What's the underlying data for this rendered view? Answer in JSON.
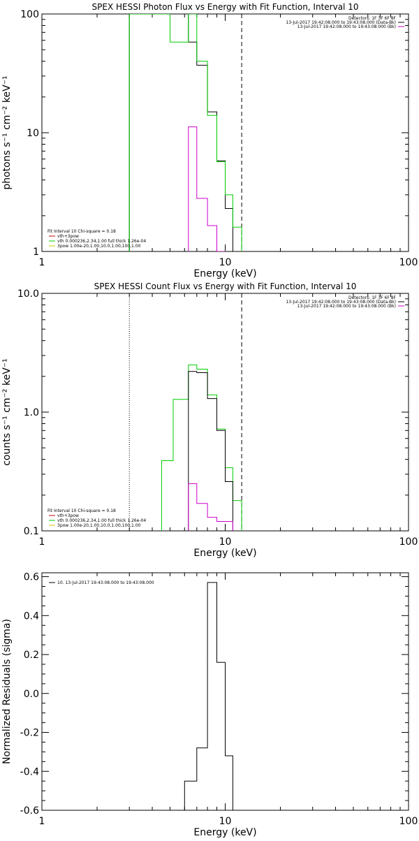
{
  "chart_data": [
    {
      "type": "line",
      "title": "SPEX HESSI Photon Flux vs Energy with Fit Function, Interval 10",
      "xlabel": "Energy (keV)",
      "ylabel": "photons s⁻¹ cm⁻² keV⁻¹",
      "xscale": "log",
      "yscale": "log",
      "xlim": [
        1,
        100
      ],
      "ylim": [
        1,
        100
      ],
      "xticks": [
        {
          "v": 1,
          "label": "1"
        },
        {
          "v": 10,
          "label": "10"
        },
        {
          "v": 100,
          "label": "100"
        }
      ],
      "yticks": [
        {
          "v": 1,
          "label": "1"
        },
        {
          "v": 10,
          "label": "10"
        },
        {
          "v": 100,
          "label": "100"
        }
      ],
      "vlines": [
        {
          "x": 3.0,
          "style": "dotted",
          "color": "#00cc00"
        },
        {
          "x": 12.3,
          "style": "dashed",
          "color": "#000000"
        }
      ],
      "legend_right": [
        {
          "text": "Detectors: 1F 3F 6F 8F",
          "color": "",
          "line": false
        },
        {
          "text": "13-Jul-2017 19:42:08.000 to 19:43:08.000 (Data-Bk)",
          "color": "#000000",
          "line": true
        },
        {
          "text": "13-Jul-2017 19:42:08.000 to 19:43:08.000 (Bk)",
          "color": "#cc00cc",
          "line": true
        }
      ],
      "legend_left": [
        {
          "text": "Fit Interval 10   Chi-square = 0.18",
          "color": "",
          "line": false
        },
        {
          "text": "vth+3pow",
          "color": "#cc0000",
          "line": true
        },
        {
          "text": "vth 0.000236,2.34,1.00  full thick 1.26e-04",
          "color": "#00cc00",
          "line": true
        },
        {
          "text": "3pow 1.00e-20,1.00,10.0,1.00,100,1.00",
          "color": "#cccc00",
          "line": true
        }
      ],
      "series": [
        {
          "name": "Data-Bk",
          "color": "#000000",
          "edges": [
            3.0,
            5.0,
            6.3,
            7.0,
            8.0,
            9.0,
            10.0,
            11.0,
            12.3
          ],
          "values": [
            100,
            100,
            58,
            37,
            15,
            5.8,
            2.3,
            1.0
          ]
        },
        {
          "name": "vth+3pow",
          "color": "#00cc00",
          "edges": [
            3.0,
            5.0,
            6.3,
            7.0,
            8.0,
            9.0,
            10.0,
            11.0,
            12.3
          ],
          "values": [
            100,
            58,
            100,
            40,
            14,
            5.7,
            3.0,
            1.6
          ]
        },
        {
          "name": "Bk",
          "color": "#cc00cc",
          "edges": [
            6.3,
            7.0,
            8.0,
            9.0,
            10.0,
            11.0
          ],
          "values": [
            11.2,
            2.8,
            1.65,
            1.0,
            0.96
          ]
        }
      ]
    },
    {
      "type": "line",
      "title": "SPEX HESSI Count Flux vs Energy with Fit Function, Interval 10",
      "xlabel": "Energy (keV)",
      "ylabel": "counts s⁻¹ cm⁻² keV⁻¹",
      "xscale": "log",
      "yscale": "log",
      "xlim": [
        1,
        100
      ],
      "ylim": [
        0.1,
        10
      ],
      "xticks": [
        {
          "v": 1,
          "label": "1"
        },
        {
          "v": 10,
          "label": "10"
        },
        {
          "v": 100,
          "label": "100"
        }
      ],
      "yticks": [
        {
          "v": 0.1,
          "label": "0.1"
        },
        {
          "v": 1,
          "label": "1.0"
        },
        {
          "v": 10,
          "label": "10.0"
        }
      ],
      "vlines": [
        {
          "x": 3.0,
          "style": "dotted",
          "color": "#000000"
        },
        {
          "x": 12.3,
          "style": "dashed",
          "color": "#000000"
        }
      ],
      "legend_right": [
        {
          "text": "Detectors: 1F 3F 6F 8F",
          "color": "",
          "line": false
        },
        {
          "text": "13-Jul-2017 19:42:08.000 to 19:43:08.000 (Data-Bk)",
          "color": "#000000",
          "line": true
        },
        {
          "text": "13-Jul-2017 19:42:08.000 to 19:43:08.000 (Bk)",
          "color": "#cc00cc",
          "line": true
        }
      ],
      "legend_left": [
        {
          "text": "Fit Interval 10   Chi-square = 0.18",
          "color": "",
          "line": false
        },
        {
          "text": "vth+3pow",
          "color": "#cc0000",
          "line": true
        },
        {
          "text": "vth 0.000236,2.34,1.00  full thick 1.26e-04",
          "color": "#00cc00",
          "line": true
        },
        {
          "text": "3pow 1.00e-20,1.00,10.0,1.00,100,1.00",
          "color": "#cccc00",
          "line": true
        }
      ],
      "series": [
        {
          "name": "vth+3pow",
          "color": "#00cc00",
          "edges": [
            4.0,
            4.5,
            5.2,
            6.3,
            7.0,
            8.0,
            9.0,
            10.0,
            11.0,
            12.3
          ],
          "values": [
            0.08,
            0.39,
            1.28,
            2.5,
            2.3,
            1.4,
            0.72,
            0.34,
            0.18
          ]
        },
        {
          "name": "Data-Bk",
          "color": "#000000",
          "edges": [
            5.2,
            6.3,
            7.0,
            8.0,
            9.0,
            10.0,
            11.0
          ],
          "values": [
            0.08,
            2.2,
            2.15,
            1.3,
            0.7,
            0.26
          ]
        },
        {
          "name": "Bk",
          "color": "#cc00cc",
          "edges": [
            6.3,
            7.0,
            8.0,
            9.0,
            10.0,
            11.0
          ],
          "values": [
            0.25,
            0.17,
            0.13,
            0.12,
            0.12
          ]
        }
      ]
    },
    {
      "type": "line",
      "title": "",
      "xlabel": "Energy (keV)",
      "ylabel": "Normalized Residuals (sigma)",
      "xscale": "log",
      "yscale": "linear",
      "xlim": [
        1,
        100
      ],
      "ylim": [
        -0.6,
        0.62
      ],
      "xticks": [
        {
          "v": 1,
          "label": "1"
        },
        {
          "v": 10,
          "label": "10"
        },
        {
          "v": 100,
          "label": "100"
        }
      ],
      "yticks": [
        {
          "v": 0.6,
          "label": "0.6"
        },
        {
          "v": 0.4,
          "label": "0.4"
        },
        {
          "v": 0.2,
          "label": "0.2"
        },
        {
          "v": 0,
          "label": "0.0"
        },
        {
          "v": -0.2,
          "label": "-0.2"
        },
        {
          "v": -0.4,
          "label": "-0.4"
        },
        {
          "v": -0.6,
          "label": "-0.6"
        }
      ],
      "vlines": [],
      "legend_right": [],
      "legend_left": [
        {
          "text": "10. 13-Jul-2017 19:43:08.000 to 19:43:08.000",
          "color": "#000000",
          "line": true
        }
      ],
      "series": [
        {
          "name": "10. 13-Jul-2017 19:43:08.000 to 19:43:08.000",
          "color": "#000000",
          "edges": [
            6.0,
            7.0,
            8.0,
            9.0,
            10.0,
            11.0
          ],
          "values": [
            -0.45,
            -0.28,
            0.57,
            0.16,
            -0.32
          ],
          "drop_to_bottom": true
        }
      ]
    }
  ]
}
